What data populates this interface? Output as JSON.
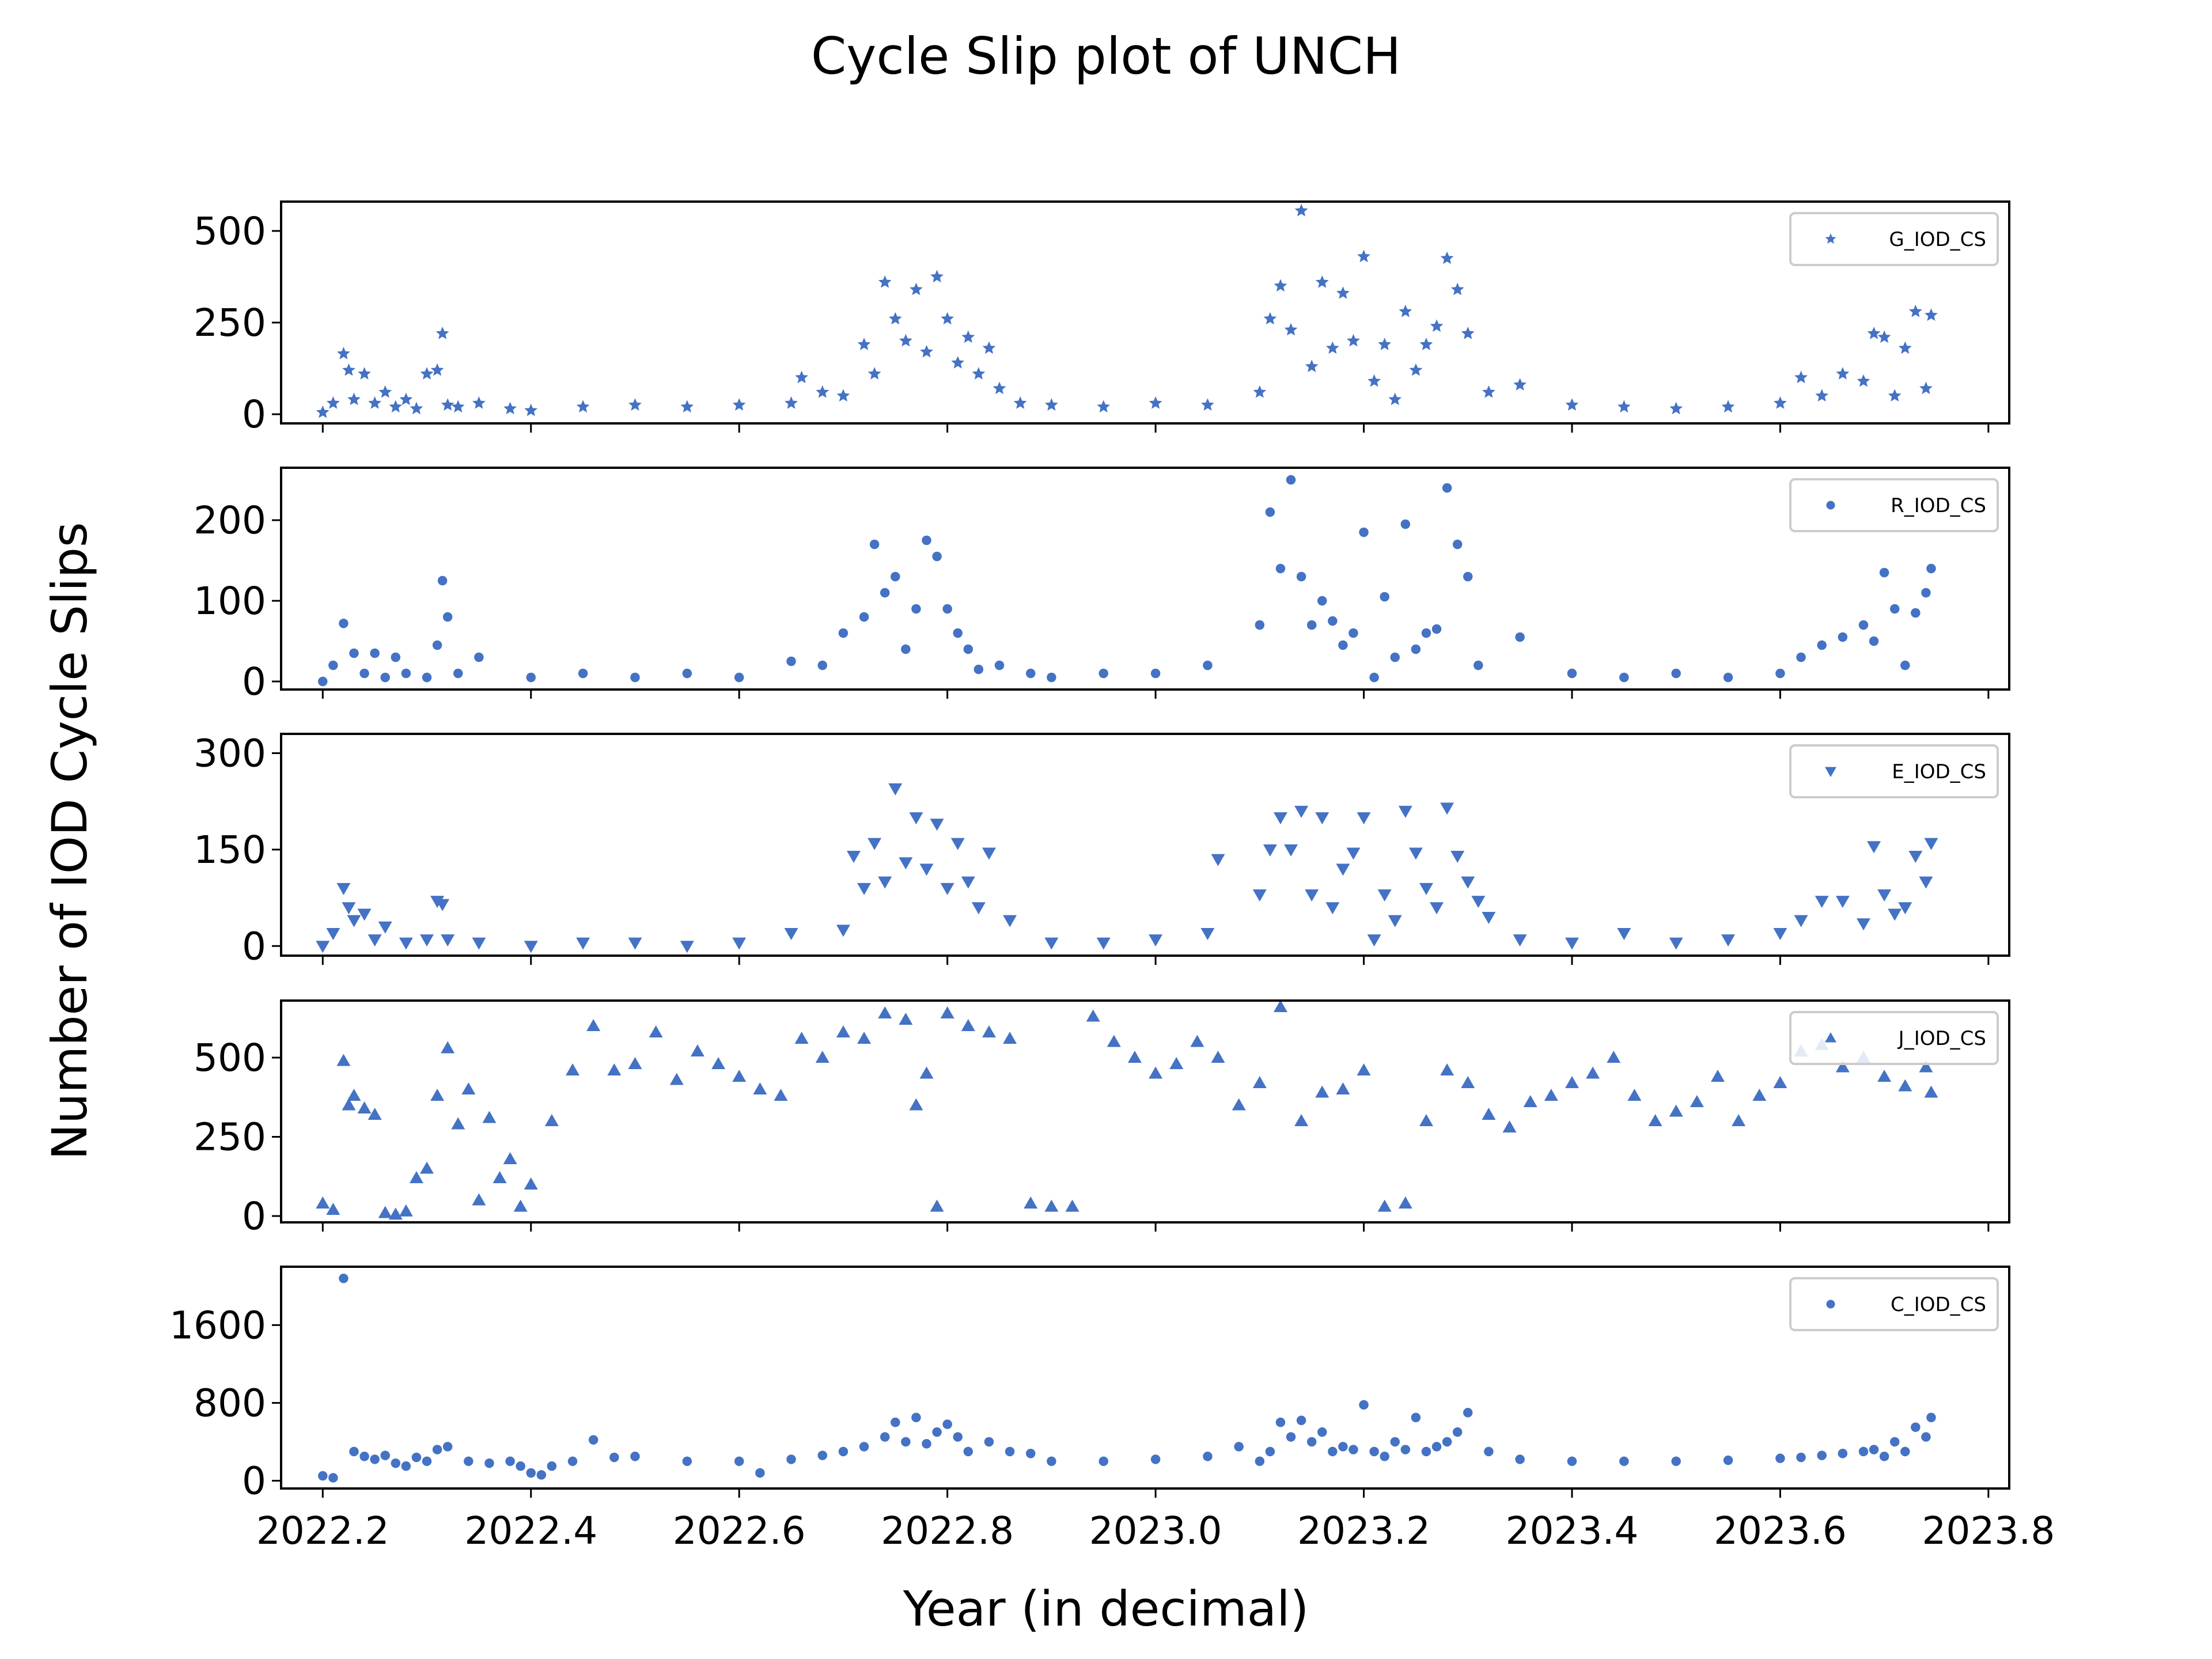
{
  "chart_data": {
    "type": "scatter",
    "title": "Cycle Slip plot of UNCH",
    "xlabel": "Year (in decimal)",
    "ylabel": "Number of IOD Cycle Slips",
    "xlim": [
      2022.16,
      2023.82
    ],
    "xticks": [
      2022.2,
      2022.4,
      2022.6,
      2022.8,
      2023.0,
      2023.2,
      2023.4,
      2023.6,
      2023.8
    ],
    "xtick_labels": [
      "2022.2",
      "2022.4",
      "2022.6",
      "2022.8",
      "2023.0",
      "2023.2",
      "2023.4",
      "2023.6",
      "2023.8"
    ],
    "color": "#4472c4",
    "grid": false,
    "legend_placement": "top-right",
    "subplots": [
      {
        "name": "G_IOD_CS",
        "marker": "star",
        "ylim": [
          -25,
          580
        ],
        "yticks": [
          0,
          250,
          500
        ],
        "ytick_labels": [
          "0",
          "250",
          "500"
        ],
        "x": [
          2022.2,
          2022.21,
          2022.22,
          2022.225,
          2022.23,
          2022.24,
          2022.25,
          2022.26,
          2022.27,
          2022.28,
          2022.29,
          2022.3,
          2022.31,
          2022.315,
          2022.32,
          2022.33,
          2022.35,
          2022.38,
          2022.4,
          2022.45,
          2022.5,
          2022.55,
          2022.6,
          2022.65,
          2022.66,
          2022.68,
          2022.7,
          2022.72,
          2022.73,
          2022.74,
          2022.75,
          2022.76,
          2022.77,
          2022.78,
          2022.79,
          2022.8,
          2022.81,
          2022.82,
          2022.83,
          2022.84,
          2022.85,
          2022.87,
          2022.9,
          2022.95,
          2023.0,
          2023.05,
          2023.1,
          2023.11,
          2023.12,
          2023.13,
          2023.14,
          2023.15,
          2023.16,
          2023.17,
          2023.18,
          2023.19,
          2023.2,
          2023.21,
          2023.22,
          2023.23,
          2023.24,
          2023.25,
          2023.26,
          2023.27,
          2023.28,
          2023.29,
          2023.3,
          2023.32,
          2023.35,
          2023.4,
          2023.45,
          2023.5,
          2023.55,
          2023.6,
          2023.62,
          2023.64,
          2023.66,
          2023.68,
          2023.69,
          2023.7,
          2023.71,
          2023.72,
          2023.73,
          2023.74,
          2023.745
        ],
        "values": [
          5,
          30,
          165,
          120,
          40,
          110,
          30,
          60,
          20,
          40,
          15,
          110,
          120,
          220,
          25,
          20,
          30,
          15,
          10,
          20,
          25,
          20,
          25,
          30,
          100,
          60,
          50,
          190,
          110,
          360,
          260,
          200,
          340,
          170,
          375,
          260,
          140,
          210,
          110,
          180,
          70,
          30,
          25,
          20,
          30,
          25,
          60,
          260,
          350,
          230,
          555,
          130,
          360,
          180,
          330,
          200,
          430,
          90,
          190,
          40,
          280,
          120,
          190,
          240,
          425,
          340,
          220,
          60,
          80,
          25,
          20,
          15,
          20,
          30,
          100,
          50,
          110,
          90,
          220,
          210,
          50,
          180,
          280,
          70,
          270
        ]
      },
      {
        "name": "R_IOD_CS",
        "marker": "circle",
        "ylim": [
          -10,
          265
        ],
        "yticks": [
          0,
          100,
          200
        ],
        "ytick_labels": [
          "0",
          "100",
          "200"
        ],
        "x": [
          2022.2,
          2022.21,
          2022.22,
          2022.23,
          2022.24,
          2022.25,
          2022.26,
          2022.27,
          2022.28,
          2022.3,
          2022.31,
          2022.315,
          2022.32,
          2022.33,
          2022.35,
          2022.4,
          2022.45,
          2022.5,
          2022.55,
          2022.6,
          2022.65,
          2022.68,
          2022.7,
          2022.72,
          2022.73,
          2022.74,
          2022.75,
          2022.76,
          2022.77,
          2022.78,
          2022.79,
          2022.8,
          2022.81,
          2022.82,
          2022.83,
          2022.85,
          2022.88,
          2022.9,
          2022.95,
          2023.0,
          2023.05,
          2023.1,
          2023.11,
          2023.12,
          2023.13,
          2023.14,
          2023.15,
          2023.16,
          2023.17,
          2023.18,
          2023.19,
          2023.2,
          2023.21,
          2023.22,
          2023.23,
          2023.24,
          2023.25,
          2023.26,
          2023.27,
          2023.28,
          2023.29,
          2023.3,
          2023.31,
          2023.35,
          2023.4,
          2023.45,
          2023.5,
          2023.55,
          2023.6,
          2023.62,
          2023.64,
          2023.66,
          2023.68,
          2023.69,
          2023.7,
          2023.71,
          2023.72,
          2023.73,
          2023.74,
          2023.745
        ],
        "values": [
          0,
          20,
          72,
          35,
          10,
          35,
          5,
          30,
          10,
          5,
          45,
          125,
          80,
          10,
          30,
          5,
          10,
          5,
          10,
          5,
          25,
          20,
          60,
          80,
          170,
          110,
          130,
          40,
          90,
          175,
          155,
          90,
          60,
          40,
          15,
          20,
          10,
          5,
          10,
          10,
          20,
          70,
          210,
          140,
          250,
          130,
          70,
          100,
          75,
          45,
          60,
          185,
          5,
          105,
          30,
          195,
          40,
          60,
          65,
          240,
          170,
          130,
          20,
          55,
          10,
          5,
          10,
          5,
          10,
          30,
          45,
          55,
          70,
          50,
          135,
          90,
          20,
          85,
          110,
          140
        ]
      },
      {
        "name": "E_IOD_CS",
        "marker": "triangle-down",
        "ylim": [
          -15,
          330
        ],
        "yticks": [
          0,
          150,
          300
        ],
        "ytick_labels": [
          "0",
          "150",
          "300"
        ],
        "x": [
          2022.2,
          2022.21,
          2022.22,
          2022.225,
          2022.23,
          2022.24,
          2022.25,
          2022.26,
          2022.28,
          2022.3,
          2022.31,
          2022.315,
          2022.32,
          2022.35,
          2022.4,
          2022.45,
          2022.5,
          2022.55,
          2022.6,
          2022.65,
          2022.7,
          2022.71,
          2022.72,
          2022.73,
          2022.74,
          2022.75,
          2022.76,
          2022.77,
          2022.78,
          2022.79,
          2022.8,
          2022.81,
          2022.82,
          2022.83,
          2022.84,
          2022.86,
          2022.9,
          2022.95,
          2023.0,
          2023.05,
          2023.06,
          2023.1,
          2023.11,
          2023.12,
          2023.13,
          2023.14,
          2023.15,
          2023.16,
          2023.17,
          2023.18,
          2023.19,
          2023.2,
          2023.21,
          2023.22,
          2023.23,
          2023.24,
          2023.25,
          2023.26,
          2023.27,
          2023.28,
          2023.29,
          2023.3,
          2023.31,
          2023.32,
          2023.35,
          2023.4,
          2023.45,
          2023.5,
          2023.55,
          2023.6,
          2023.62,
          2023.64,
          2023.66,
          2023.68,
          2023.69,
          2023.7,
          2023.71,
          2023.72,
          2023.73,
          2023.74,
          2023.745
        ],
        "values": [
          0,
          20,
          90,
          60,
          40,
          50,
          10,
          30,
          5,
          10,
          70,
          65,
          10,
          5,
          0,
          5,
          5,
          0,
          5,
          20,
          25,
          140,
          90,
          160,
          100,
          245,
          130,
          200,
          120,
          190,
          90,
          160,
          100,
          60,
          145,
          40,
          5,
          5,
          10,
          20,
          135,
          80,
          150,
          200,
          150,
          210,
          80,
          200,
          60,
          120,
          145,
          200,
          10,
          80,
          40,
          210,
          145,
          90,
          60,
          215,
          140,
          100,
          70,
          45,
          10,
          5,
          20,
          5,
          10,
          20,
          40,
          70,
          70,
          35,
          155,
          80,
          50,
          60,
          140,
          100,
          160
        ]
      },
      {
        "name": "J_IOD_CS",
        "marker": "triangle-up",
        "ylim": [
          -20,
          680
        ],
        "yticks": [
          0,
          250,
          500
        ],
        "ytick_labels": [
          "0",
          "250",
          "500"
        ],
        "x": [
          2022.2,
          2022.21,
          2022.22,
          2022.225,
          2022.23,
          2022.24,
          2022.25,
          2022.26,
          2022.27,
          2022.28,
          2022.29,
          2022.3,
          2022.31,
          2022.32,
          2022.33,
          2022.34,
          2022.35,
          2022.36,
          2022.37,
          2022.38,
          2022.39,
          2022.4,
          2022.42,
          2022.44,
          2022.46,
          2022.48,
          2022.5,
          2022.52,
          2022.54,
          2022.56,
          2022.58,
          2022.6,
          2022.62,
          2022.64,
          2022.66,
          2022.68,
          2022.7,
          2022.72,
          2022.74,
          2022.76,
          2022.77,
          2022.78,
          2022.79,
          2022.8,
          2022.82,
          2022.84,
          2022.86,
          2022.88,
          2022.9,
          2022.92,
          2022.94,
          2022.96,
          2022.98,
          2023.0,
          2023.02,
          2023.04,
          2023.06,
          2023.08,
          2023.1,
          2023.12,
          2023.14,
          2023.16,
          2023.18,
          2023.2,
          2023.22,
          2023.24,
          2023.26,
          2023.28,
          2023.3,
          2023.32,
          2023.34,
          2023.36,
          2023.38,
          2023.4,
          2023.42,
          2023.44,
          2023.46,
          2023.48,
          2023.5,
          2023.52,
          2023.54,
          2023.56,
          2023.58,
          2023.6,
          2023.62,
          2023.64,
          2023.66,
          2023.68,
          2023.7,
          2023.72,
          2023.74,
          2023.745
        ],
        "values": [
          40,
          20,
          490,
          350,
          380,
          340,
          320,
          10,
          5,
          15,
          120,
          150,
          380,
          530,
          290,
          400,
          50,
          310,
          120,
          180,
          30,
          100,
          300,
          460,
          600,
          460,
          480,
          580,
          430,
          520,
          480,
          440,
          400,
          380,
          560,
          500,
          580,
          560,
          640,
          620,
          350,
          450,
          30,
          640,
          600,
          580,
          560,
          40,
          30,
          30,
          630,
          550,
          500,
          450,
          480,
          550,
          500,
          350,
          420,
          660,
          300,
          390,
          400,
          460,
          30,
          40,
          300,
          460,
          420,
          320,
          280,
          360,
          380,
          420,
          450,
          500,
          380,
          300,
          330,
          360,
          440,
          300,
          380,
          420,
          520,
          540,
          470,
          500,
          440,
          410,
          470,
          390
        ]
      },
      {
        "name": "C_IOD_CS",
        "marker": "circle",
        "ylim": [
          -80,
          2200
        ],
        "yticks": [
          0,
          800,
          1600
        ],
        "ytick_labels": [
          "0",
          "800",
          "1600"
        ],
        "x": [
          2022.2,
          2022.21,
          2022.22,
          2022.23,
          2022.24,
          2022.25,
          2022.26,
          2022.27,
          2022.28,
          2022.29,
          2022.3,
          2022.31,
          2022.32,
          2022.34,
          2022.36,
          2022.38,
          2022.39,
          2022.4,
          2022.41,
          2022.42,
          2022.44,
          2022.46,
          2022.48,
          2022.5,
          2022.55,
          2022.6,
          2022.62,
          2022.65,
          2022.68,
          2022.7,
          2022.72,
          2022.74,
          2022.75,
          2022.76,
          2022.77,
          2022.78,
          2022.79,
          2022.8,
          2022.81,
          2022.82,
          2022.84,
          2022.86,
          2022.88,
          2022.9,
          2022.95,
          2023.0,
          2023.05,
          2023.08,
          2023.1,
          2023.11,
          2023.12,
          2023.13,
          2023.14,
          2023.15,
          2023.16,
          2023.17,
          2023.18,
          2023.19,
          2023.2,
          2023.21,
          2023.22,
          2023.23,
          2023.24,
          2023.25,
          2023.26,
          2023.27,
          2023.28,
          2023.29,
          2023.3,
          2023.32,
          2023.35,
          2023.4,
          2023.45,
          2023.5,
          2023.55,
          2023.6,
          2023.62,
          2023.64,
          2023.66,
          2023.68,
          2023.69,
          2023.7,
          2023.71,
          2023.72,
          2023.73,
          2023.74,
          2023.745
        ],
        "values": [
          50,
          30,
          2080,
          300,
          250,
          220,
          260,
          180,
          150,
          240,
          200,
          320,
          350,
          200,
          180,
          200,
          150,
          80,
          60,
          150,
          200,
          420,
          240,
          250,
          200,
          200,
          80,
          220,
          260,
          300,
          350,
          450,
          600,
          400,
          650,
          380,
          500,
          580,
          450,
          300,
          400,
          300,
          280,
          200,
          200,
          220,
          250,
          350,
          200,
          300,
          600,
          450,
          620,
          400,
          500,
          300,
          350,
          320,
          780,
          300,
          250,
          400,
          320,
          650,
          300,
          350,
          400,
          500,
          700,
          300,
          220,
          200,
          200,
          200,
          210,
          230,
          240,
          260,
          280,
          300,
          320,
          250,
          400,
          300,
          550,
          450,
          650
        ]
      }
    ]
  }
}
